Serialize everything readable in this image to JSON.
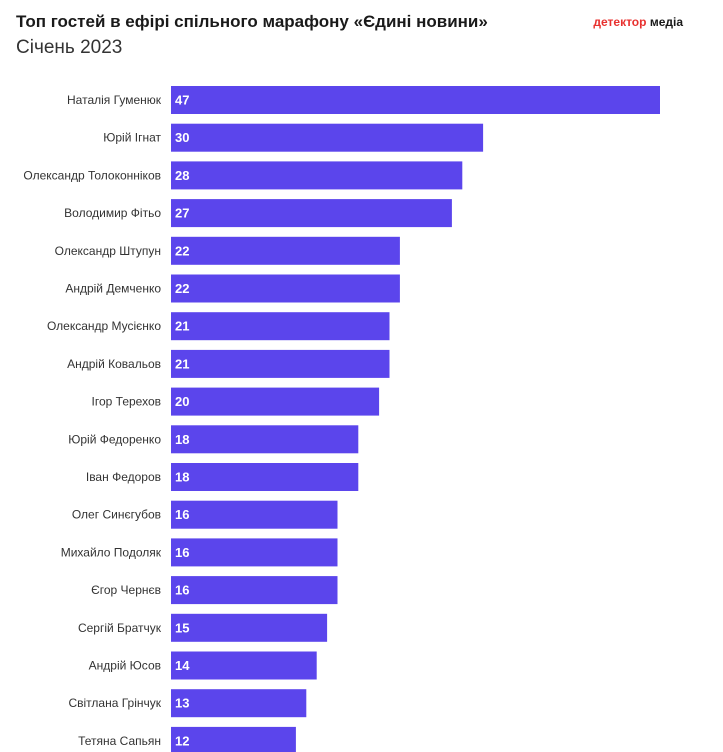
{
  "header": {
    "title": "Топ гостей в ефірі спільного марафону «Єдині новини»",
    "subtitle": "Січень 2023",
    "logo_part1": "детектор",
    "logo_part2": "медіа"
  },
  "colors": {
    "bar": "#5b45ec",
    "logo_accent": "#e8312f"
  },
  "chart_data": {
    "type": "bar",
    "orientation": "horizontal",
    "title": "Топ гостей в ефірі спільного марафону «Єдині новини»",
    "subtitle": "Січень 2023",
    "categories": [
      "Наталія Гуменюк",
      "Юрій Ігнат",
      "Олександр Толоконніков",
      "Володимир Фітьо",
      "Олександр Штупун",
      "Андрій Демченко",
      "Олександр Мусієнко",
      "Андрій Ковальов",
      "Ігор Терехов",
      "Юрій Федоренко",
      "Іван Федоров",
      "Олег Синєгубов",
      "Михайло Подоляк",
      "Єгор Чернєв",
      "Сергій Братчук",
      "Андрій Юсов",
      "Світлана Грінчук",
      "Тетяна Сапьян"
    ],
    "values": [
      47,
      30,
      28,
      27,
      22,
      22,
      21,
      21,
      20,
      18,
      18,
      16,
      16,
      16,
      15,
      14,
      13,
      12
    ],
    "xlim": [
      0,
      47
    ],
    "grid": false,
    "legend": "none",
    "data_labels": "inside-left"
  }
}
